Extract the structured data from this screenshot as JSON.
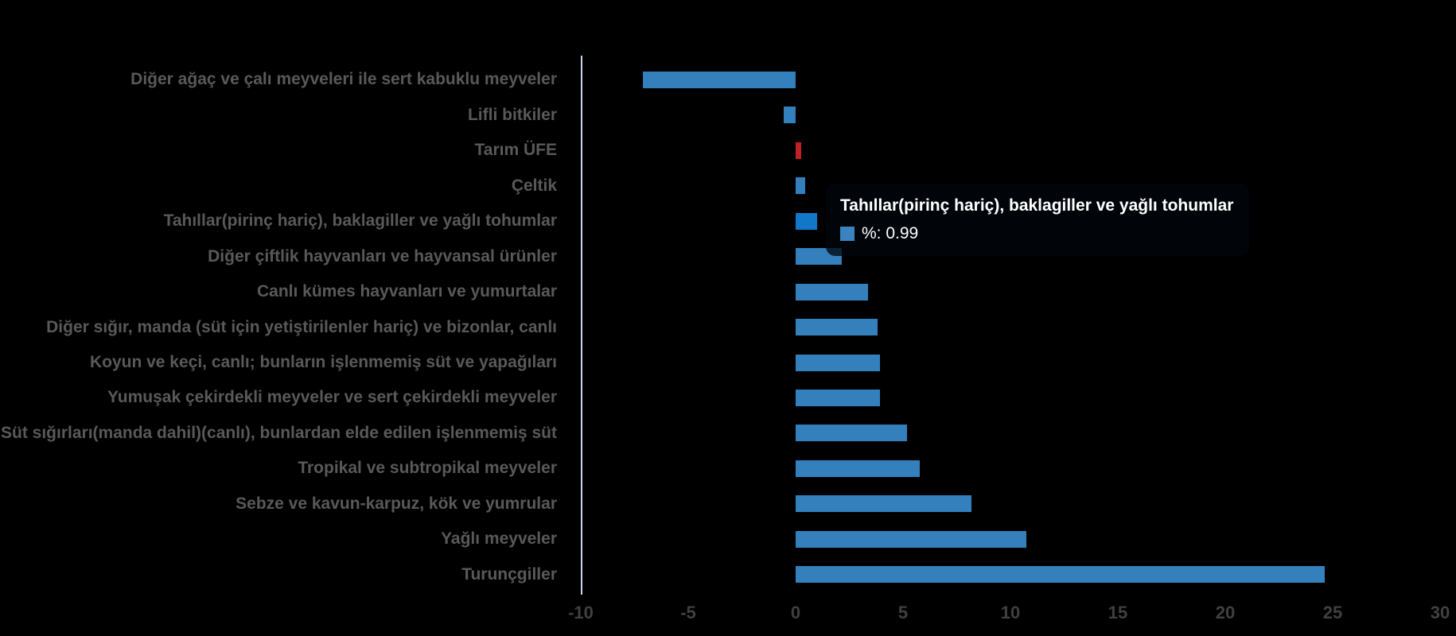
{
  "chart_data": {
    "type": "bar",
    "orientation": "horizontal",
    "title": "",
    "xlabel": "",
    "ylabel": "",
    "grid": false,
    "xlim": [
      -10,
      30
    ],
    "xticks": [
      -10,
      -5,
      0,
      5,
      10,
      15,
      20,
      25,
      30
    ],
    "categories": [
      "Diğer ağaç ve çalı meyveleri ile sert kabuklu meyveler",
      "Lifli bitkiler",
      "Tarım ÜFE",
      "Çeltik",
      "Tahıllar(pirinç hariç), baklagiller ve yağlı tohumlar",
      "Diğer çiftlik hayvanları ve hayvansal ürünler",
      "Canlı kümes hayvanları ve yumurtalar",
      "Diğer sığır, manda (süt için yetiştirilenler hariç) ve bizonlar, canlı",
      "Koyun ve keçi, canlı; bunların işlenmemiş süt ve yapağıları",
      "Yumuşak çekirdekli meyveler ve sert çekirdekli meyveler",
      "Süt sığırları(manda dahil)(canlı), bunlardan elde edilen işlenmemiş süt",
      "Tropikal ve subtropikal meyveler",
      "Sebze ve kavun-karpuz, kök ve yumrular",
      "Yağlı meyveler",
      "Turunçgiller"
    ],
    "values": [
      -7.1,
      -0.56,
      0.26,
      0.46,
      0.99,
      2.14,
      3.37,
      3.83,
      3.91,
      3.93,
      5.19,
      5.78,
      8.17,
      10.74,
      24.64
    ],
    "bar_colors": [
      "blue",
      "blue",
      "red",
      "blue",
      "blue_hover",
      "blue",
      "blue",
      "blue",
      "blue",
      "blue",
      "blue",
      "blue",
      "blue",
      "blue",
      "blue"
    ],
    "palette": {
      "blue": "#3380bd",
      "blue_hover": "#1377c9",
      "red": "#bf2126"
    },
    "colors": {
      "background": "#000000",
      "axis_line": "#ccd6eb",
      "category_label": "#595959",
      "tick_label": "#404040",
      "tooltip_text": "#ffffff",
      "tooltip_marker": "#3a83c0"
    },
    "legend_position": "none",
    "tooltip": {
      "title": "Tahıllar(pirinç hariç), baklagiller ve yağlı tohumlar",
      "series_label": "%",
      "value": "0.99",
      "value_text": "%: 0.99",
      "hovered_category_index": 4
    }
  }
}
